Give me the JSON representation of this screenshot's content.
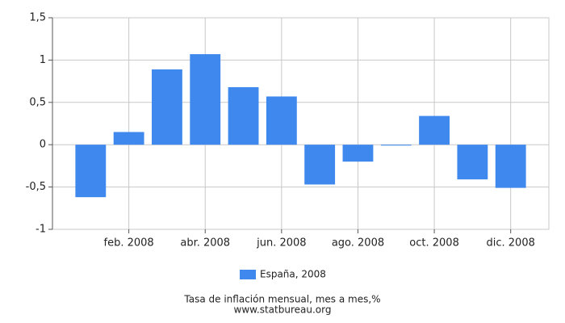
{
  "chart_data": {
    "type": "bar",
    "title": "Tasa de inflación mensual, mes a mes,%",
    "source": "www.statbureau.org",
    "categories": [
      null,
      "feb. 2008",
      null,
      "abr. 2008",
      null,
      "jun. 2008",
      null,
      "ago. 2008",
      null,
      "oct. 2008",
      null,
      "dic. 2008"
    ],
    "series": [
      {
        "name": "España, 2008",
        "color": "#3f88ee",
        "values": [
          -0.62,
          0.15,
          0.89,
          1.07,
          0.68,
          0.57,
          -0.47,
          -0.2,
          -0.01,
          0.34,
          -0.41,
          -0.51
        ]
      }
    ],
    "ylim": [
      -1,
      1.5
    ],
    "yticks": [
      -1,
      {
        "value": -0.5,
        "label": "-0,5"
      },
      0,
      {
        "value": 0.5,
        "label": "0,5"
      },
      1,
      {
        "value": 1.5,
        "label": "1,5"
      }
    ],
    "grid": true
  }
}
